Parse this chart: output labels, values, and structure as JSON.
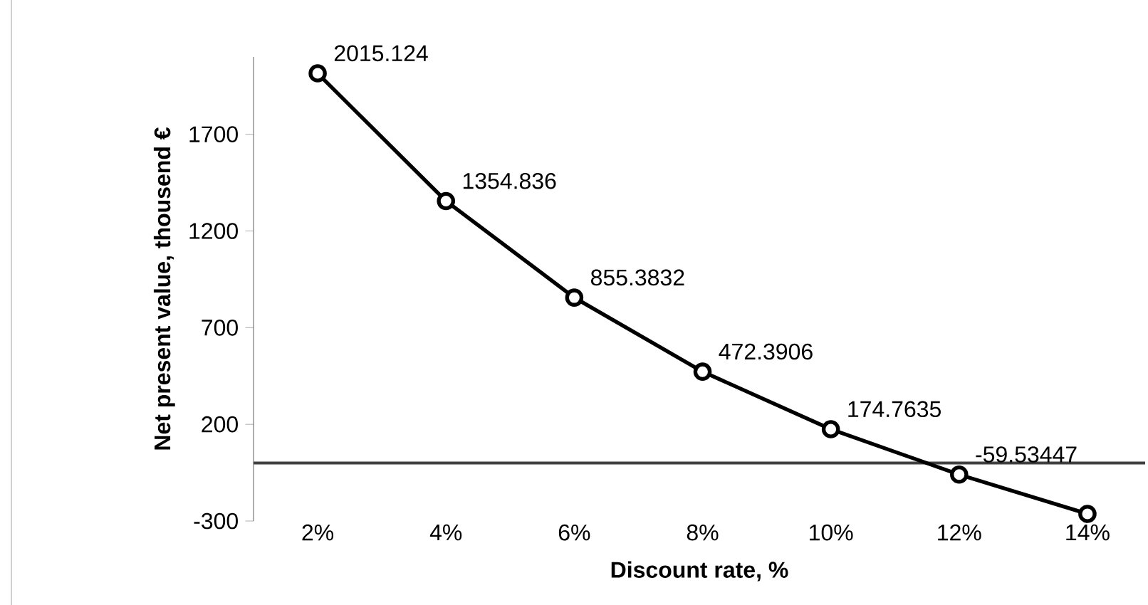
{
  "chart_data": {
    "type": "line",
    "xlabel": "Discount rate, %",
    "ylabel": "Net present value, thousend €",
    "categories": [
      "2%",
      "4%",
      "6%",
      "8%",
      "10%",
      "12%",
      "14%"
    ],
    "series": [
      {
        "color": "#000000",
        "values": [
          2015.124,
          1354.836,
          855.3832,
          472.3906,
          174.7635,
          -59.53447,
          -263
        ],
        "value_labels": [
          "2015.124",
          "1354.836",
          "855.3832",
          "472.3906",
          "174.7635",
          "-59.53447",
          null
        ]
      }
    ],
    "ylim": [
      -300,
      2100
    ],
    "yticks": [
      -300,
      200,
      700,
      1200,
      1700
    ],
    "grid": false,
    "marker": "circle",
    "line_style": "solid"
  }
}
